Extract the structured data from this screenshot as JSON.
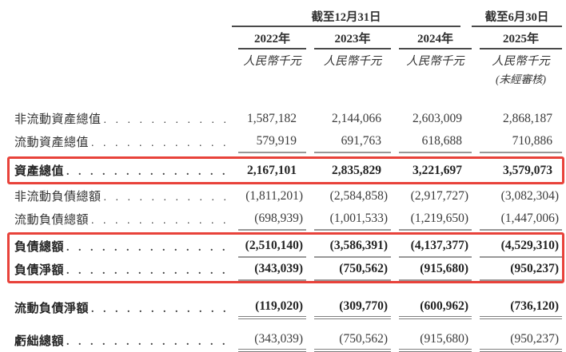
{
  "header": {
    "period_dec": "截至12月31日",
    "period_jun": "截至6月30日",
    "years": [
      "2022年",
      "2023年",
      "2024年",
      "2025年"
    ],
    "unit": "人民幣千元",
    "unaudited": "(未經審核)"
  },
  "table": {
    "dot_leader": ". . . . . . . . . . . . . . . . . . . . . . . . . . . . . . . .",
    "highlight_color": "#e8423a",
    "rows": [
      {
        "section": "top",
        "label": "非流動資產總值",
        "values": [
          "1,587,182",
          "2,144,066",
          "2,603,009",
          "2,868,187"
        ],
        "label_bold": false,
        "values_bold": false,
        "underline": "none"
      },
      {
        "section": "top",
        "label": "流動資產總值",
        "values": [
          "579,919",
          "691,763",
          "618,688",
          "710,886"
        ],
        "label_bold": false,
        "values_bold": false,
        "underline": "single"
      },
      {
        "section": "box1",
        "label": "資產總值",
        "values": [
          "2,167,101",
          "2,835,829",
          "3,221,697",
          "3,579,073"
        ],
        "label_bold": true,
        "values_bold": true,
        "underline": "none",
        "highlighted": true
      },
      {
        "section": "mid",
        "label": "非流動負債總額",
        "values": [
          "(1,811,201)",
          "(2,584,858)",
          "(2,917,727)",
          "(3,082,304)"
        ],
        "label_bold": false,
        "values_bold": false,
        "underline": "none"
      },
      {
        "section": "mid",
        "label": "流動負債總額",
        "values": [
          "(698,939)",
          "(1,001,533)",
          "(1,219,650)",
          "(1,447,006)"
        ],
        "label_bold": false,
        "values_bold": false,
        "underline": "single"
      },
      {
        "section": "box2",
        "label": "負債總額",
        "values": [
          "(2,510,140)",
          "(3,586,391)",
          "(4,137,377)",
          "(4,529,310)"
        ],
        "label_bold": true,
        "values_bold": true,
        "underline": "single",
        "highlighted": true
      },
      {
        "section": "box2",
        "label": "負債淨額",
        "values": [
          "(343,039)",
          "(750,562)",
          "(915,680)",
          "(950,237)"
        ],
        "label_bold": true,
        "values_bold": true,
        "underline": "single",
        "highlighted": true
      },
      {
        "section": "bottom",
        "label": "流動負債淨額",
        "values": [
          "(119,020)",
          "(309,770)",
          "(600,962)",
          "(736,120)"
        ],
        "label_bold": true,
        "values_bold": true,
        "underline": "double"
      },
      {
        "section": "bottom",
        "label": "虧絀總額",
        "values": [
          "(343,039)",
          "(750,562)",
          "(915,680)",
          "(950,237)"
        ],
        "label_bold": true,
        "values_bold": false,
        "underline": "double"
      }
    ]
  }
}
